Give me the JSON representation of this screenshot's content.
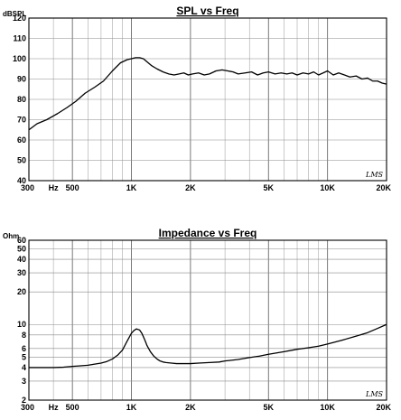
{
  "chart_data": [
    {
      "type": "line",
      "title": "SPL vs Freq",
      "ylabel": "dBSPL",
      "xscale": "log",
      "xlim": [
        300,
        20000
      ],
      "ylim": [
        40,
        120
      ],
      "grid": true,
      "x_ticks": [
        {
          "value": 300,
          "label": "300"
        },
        {
          "value": 400,
          "label": "Hz"
        },
        {
          "value": 500,
          "label": "500"
        },
        {
          "value": 1000,
          "label": "1K"
        },
        {
          "value": 2000,
          "label": "2K"
        },
        {
          "value": 5000,
          "label": "5K"
        },
        {
          "value": 10000,
          "label": "10K"
        },
        {
          "value": 20000,
          "label": "20K"
        }
      ],
      "y_ticks": [
        40,
        50,
        60,
        70,
        80,
        90,
        100,
        110,
        120
      ],
      "watermark": "LMS",
      "series": [
        {
          "x": [
            300,
            330,
            370,
            420,
            470,
            520,
            580,
            650,
            720,
            800,
            880,
            950,
            1000,
            1050,
            1100,
            1150,
            1200,
            1270,
            1350,
            1450,
            1550,
            1650,
            1750,
            1850,
            1950,
            2050,
            2200,
            2350,
            2500,
            2700,
            2900,
            3100,
            3300,
            3500,
            3800,
            4100,
            4400,
            4700,
            5000,
            5400,
            5800,
            6200,
            6600,
            7000,
            7500,
            8000,
            8500,
            9000,
            9500,
            10000,
            10700,
            11400,
            12200,
            13000,
            14000,
            15000,
            16000,
            17000,
            18000,
            19000,
            20000
          ],
          "y": [
            65,
            68,
            70,
            73,
            76,
            79,
            83,
            86,
            89,
            94,
            98,
            99.5,
            100,
            100.5,
            100.5,
            100,
            98.5,
            96.5,
            95,
            93.5,
            92.5,
            92,
            92.5,
            93,
            92,
            92.5,
            93,
            92,
            92.5,
            94,
            94.5,
            94,
            93.5,
            92.5,
            93,
            93.5,
            92,
            93,
            93.5,
            92.5,
            93,
            92.5,
            93,
            92,
            93,
            92.5,
            93.5,
            92,
            93,
            94,
            92,
            93,
            92,
            91,
            91.5,
            90,
            90.5,
            89,
            89,
            88,
            87.5
          ]
        }
      ]
    },
    {
      "type": "line",
      "title": "Impedance vs Freq",
      "ylabel": "Ohm",
      "xscale": "log",
      "yscale": "log",
      "xlim": [
        300,
        20000
      ],
      "ylim": [
        2,
        60
      ],
      "grid": true,
      "x_ticks": [
        {
          "value": 300,
          "label": "300"
        },
        {
          "value": 400,
          "label": "Hz"
        },
        {
          "value": 500,
          "label": "500"
        },
        {
          "value": 1000,
          "label": "1K"
        },
        {
          "value": 2000,
          "label": "2K"
        },
        {
          "value": 5000,
          "label": "5K"
        },
        {
          "value": 10000,
          "label": "10K"
        },
        {
          "value": 20000,
          "label": "20K"
        }
      ],
      "y_ticks": [
        2,
        3,
        4,
        5,
        6,
        8,
        10,
        20,
        30,
        40,
        50,
        60
      ],
      "watermark": "LMS",
      "series": [
        {
          "x": [
            300,
            350,
            400,
            450,
            500,
            550,
            600,
            650,
            700,
            750,
            800,
            850,
            900,
            950,
            1000,
            1030,
            1060,
            1100,
            1130,
            1170,
            1200,
            1250,
            1300,
            1350,
            1400,
            1450,
            1500,
            1600,
            1700,
            1800,
            2000,
            2200,
            2500,
            2800,
            3000,
            3500,
            4000,
            4500,
            5000,
            6000,
            7000,
            8000,
            9000,
            10000,
            12000,
            14000,
            16000,
            18000,
            20000
          ],
          "y": [
            4,
            4,
            4,
            4.03,
            4.1,
            4.15,
            4.2,
            4.3,
            4.4,
            4.55,
            4.8,
            5.2,
            5.8,
            7,
            8.3,
            8.8,
            9.1,
            8.9,
            8.3,
            7.2,
            6.4,
            5.6,
            5.1,
            4.8,
            4.6,
            4.5,
            4.45,
            4.4,
            4.35,
            4.35,
            4.35,
            4.4,
            4.45,
            4.5,
            4.6,
            4.75,
            4.95,
            5.1,
            5.3,
            5.6,
            5.9,
            6.1,
            6.3,
            6.6,
            7.2,
            7.8,
            8.4,
            9.2,
            10
          ]
        }
      ]
    }
  ]
}
